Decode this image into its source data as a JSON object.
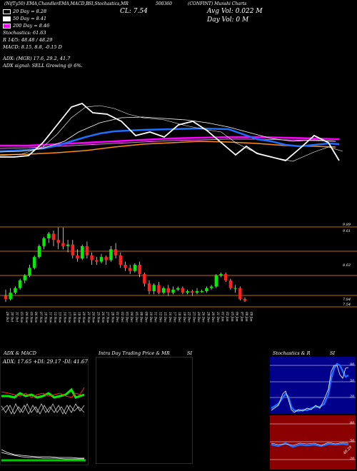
{
  "header": {
    "chart_tags": "(NifTy50) EMA,ChandlerEMA,MACD,B",
    "chart_tags2": "SI,Stochastics,MR",
    "symbol_tag": "(CONFINT) Munshi Charts",
    "symbol_code": "500360",
    "close_label": "CL: 7.54",
    "avg_vol": "Avg Vol: 0.022  M",
    "day_vol": "Day Vol: 0  M"
  },
  "legend": {
    "ema20": "20  Day = 8.28",
    "ema50": "50  Day = 8.41",
    "ema200": "200  Day = 8.46",
    "stoch": "Stochastics: 61.63",
    "stoch_detail": "R  14/5: 48.48 / 48.29",
    "macd": "MACD: 8.15,  8.8,  -0.15 D",
    "adx_line": "ADX:                            (MGR) 17.6,  29.2,  41.7",
    "adx_signal": "ADX  signal: SELL  Growing @ 6%."
  },
  "colors": {
    "ema20": "#ffffff",
    "ema50": "#ffffff",
    "ema200": "#ff00ff",
    "up": "#00ee00",
    "down": "#ff2020",
    "blue": "#1f6fff",
    "orange": "#ff8c1a"
  },
  "price_axis": [
    "9.89",
    "9.61",
    "8.62",
    "7.84",
    "7.54"
  ],
  "dates": [
    "29 Oct",
    "30 Oct",
    "31 Oct",
    "03 Nov",
    "04 Nov",
    "05 Nov",
    "06 Nov",
    "07 Nov",
    "10 Nov",
    "11 Nov",
    "12 Nov",
    "13 Nov",
    "14 Nov",
    "17 Nov",
    "18 Nov",
    "19 Nov",
    "20 Nov",
    "21 Nov",
    "24 Nov",
    "25 Nov",
    "26 Nov",
    "27 Nov",
    "28 Nov",
    "01 Dec",
    "02 Dec",
    "03 Dec",
    "04 Dec",
    "05 Dec",
    "08 Dec",
    "09 Dec",
    "10 Dec",
    "11 Dec",
    "12 Dec",
    "15 Dec",
    "16 Dec",
    "17 Dec",
    "18 Dec",
    "19 Dec",
    "22 Dec",
    "23 Dec",
    "24 Dec",
    "26 Dec",
    "29 Dec",
    "30 Dec",
    "31 Dec",
    "01 Jan",
    "02 Jan",
    "05 Jan",
    "06 Jan",
    "07 Jan",
    "08 Jan",
    "09 Jan"
  ],
  "panels": {
    "adx_title": "ADX  & MACD",
    "adx_values": "ADX: 17.65  +DI: 29.17  -DI: 41.67",
    "intraday_title": "Intra Day Trading Price  & MR",
    "intraday_si": "SI",
    "stoch_title": "Stochastics & R",
    "stoch_si": "SI",
    "stoch_ticks": [
      "80",
      "50",
      "20"
    ],
    "mr_ticks": [
      "80",
      "50",
      "20"
    ],
    "mr_value": "48.29"
  },
  "chart_data": {
    "type": "candlestick",
    "candles": [
      {
        "o": 7.7,
        "c": 7.6,
        "h": 7.9,
        "l": 7.5
      },
      {
        "o": 7.6,
        "c": 7.8,
        "h": 7.95,
        "l": 7.55
      },
      {
        "o": 7.8,
        "c": 7.95,
        "h": 8.0,
        "l": 7.75
      },
      {
        "o": 7.95,
        "c": 8.2,
        "h": 8.25,
        "l": 7.9
      },
      {
        "o": 8.2,
        "c": 8.35,
        "h": 8.4,
        "l": 8.1
      },
      {
        "o": 8.35,
        "c": 8.6,
        "h": 8.7,
        "l": 8.3
      },
      {
        "o": 8.6,
        "c": 8.95,
        "h": 9.0,
        "l": 8.55
      },
      {
        "o": 8.95,
        "c": 9.3,
        "h": 9.35,
        "l": 8.9
      },
      {
        "o": 9.3,
        "c": 9.55,
        "h": 9.6,
        "l": 9.2
      },
      {
        "o": 9.55,
        "c": 9.7,
        "h": 9.75,
        "l": 9.4
      },
      {
        "o": 9.7,
        "c": 9.5,
        "h": 9.8,
        "l": 9.3
      },
      {
        "o": 9.5,
        "c": 9.4,
        "h": 9.9,
        "l": 9.2
      },
      {
        "o": 9.4,
        "c": 9.3,
        "h": 9.9,
        "l": 9.2
      },
      {
        "o": 9.3,
        "c": 9.35,
        "h": 9.5,
        "l": 9.1
      },
      {
        "o": 9.35,
        "c": 9.0,
        "h": 9.5,
        "l": 8.9
      },
      {
        "o": 9.0,
        "c": 8.9,
        "h": 9.2,
        "l": 8.8
      },
      {
        "o": 8.9,
        "c": 9.3,
        "h": 9.35,
        "l": 8.85
      },
      {
        "o": 9.3,
        "c": 9.0,
        "h": 9.45,
        "l": 8.9
      },
      {
        "o": 9.0,
        "c": 8.85,
        "h": 9.1,
        "l": 8.7
      },
      {
        "o": 8.85,
        "c": 8.8,
        "h": 8.95,
        "l": 8.7
      },
      {
        "o": 8.8,
        "c": 8.95,
        "h": 9.05,
        "l": 8.75
      },
      {
        "o": 8.95,
        "c": 8.85,
        "h": 9.0,
        "l": 8.7
      },
      {
        "o": 8.85,
        "c": 9.2,
        "h": 9.3,
        "l": 8.8
      },
      {
        "o": 9.2,
        "c": 9.0,
        "h": 9.4,
        "l": 8.9
      },
      {
        "o": 9.0,
        "c": 8.7,
        "h": 9.1,
        "l": 8.6
      },
      {
        "o": 8.7,
        "c": 8.6,
        "h": 8.8,
        "l": 8.5
      },
      {
        "o": 8.6,
        "c": 8.5,
        "h": 8.7,
        "l": 8.4
      },
      {
        "o": 8.5,
        "c": 8.7,
        "h": 8.75,
        "l": 8.45
      },
      {
        "o": 8.7,
        "c": 8.4,
        "h": 8.8,
        "l": 8.3
      },
      {
        "o": 8.4,
        "c": 8.1,
        "h": 8.45,
        "l": 8.0
      },
      {
        "o": 8.1,
        "c": 7.85,
        "h": 8.2,
        "l": 7.75
      },
      {
        "o": 7.85,
        "c": 8.05,
        "h": 8.1,
        "l": 7.75
      },
      {
        "o": 8.05,
        "c": 7.8,
        "h": 8.15,
        "l": 7.75
      },
      {
        "o": 7.8,
        "c": 7.95,
        "h": 8.0,
        "l": 7.75
      },
      {
        "o": 7.95,
        "c": 7.8,
        "h": 8.05,
        "l": 7.7
      },
      {
        "o": 7.8,
        "c": 7.9,
        "h": 8.0,
        "l": 7.75
      },
      {
        "o": 7.9,
        "c": 7.95,
        "h": 8.0,
        "l": 7.85
      },
      {
        "o": 7.95,
        "c": 7.8,
        "h": 8.0,
        "l": 7.75
      },
      {
        "o": 7.8,
        "c": 7.85,
        "h": 7.9,
        "l": 7.75
      },
      {
        "o": 7.85,
        "c": 7.8,
        "h": 7.9,
        "l": 7.7
      },
      {
        "o": 7.8,
        "c": 7.85,
        "h": 7.95,
        "l": 7.75
      },
      {
        "o": 7.85,
        "c": 7.85,
        "h": 7.9,
        "l": 7.8
      },
      {
        "o": 7.85,
        "c": 7.95,
        "h": 8.0,
        "l": 7.8
      },
      {
        "o": 7.95,
        "c": 8.0,
        "h": 8.05,
        "l": 7.9
      },
      {
        "o": 8.0,
        "c": 8.35,
        "h": 8.4,
        "l": 7.95
      },
      {
        "o": 8.35,
        "c": 8.4,
        "h": 8.45,
        "l": 8.3
      },
      {
        "o": 8.4,
        "c": 8.2,
        "h": 8.45,
        "l": 8.15
      },
      {
        "o": 8.2,
        "c": 7.95,
        "h": 8.25,
        "l": 7.9
      },
      {
        "o": 7.95,
        "c": 7.95,
        "h": 8.05,
        "l": 7.8
      },
      {
        "o": 7.95,
        "c": 7.6,
        "h": 8.0,
        "l": 7.55
      },
      {
        "o": 7.6,
        "c": 7.54,
        "h": 7.65,
        "l": 7.5
      }
    ],
    "ylim": [
      7.3,
      10.1
    ]
  }
}
